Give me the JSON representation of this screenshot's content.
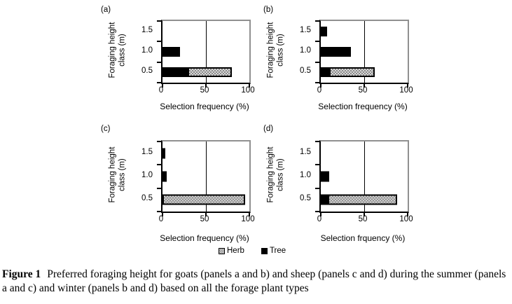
{
  "chart_data": [
    {
      "panel": "a",
      "title": "(a)",
      "type": "bar",
      "orientation": "horizontal",
      "stacked": true,
      "categories": [
        "1.5",
        "1.0",
        "0.5"
      ],
      "series": [
        {
          "name": "Tree",
          "fill": "solid-black",
          "values": [
            0,
            20,
            30
          ]
        },
        {
          "name": "Herb",
          "fill": "hatched",
          "values": [
            0,
            0,
            50
          ]
        }
      ],
      "xlabel": "Selection frequency (%)",
      "ylabel": "Foraging height class (m)",
      "ylabel_lines": [
        "Foraging height",
        "class (m)"
      ],
      "xlim": [
        0,
        100
      ],
      "xticks": [
        "0",
        "50",
        "100"
      ],
      "gridline_x": 50
    },
    {
      "panel": "b",
      "title": "(b)",
      "type": "bar",
      "orientation": "horizontal",
      "stacked": true,
      "categories": [
        "1.5",
        "1.0",
        "0.5"
      ],
      "series": [
        {
          "name": "Tree",
          "fill": "solid-black",
          "values": [
            7,
            35,
            10
          ]
        },
        {
          "name": "Herb",
          "fill": "hatched",
          "values": [
            0,
            0,
            52
          ]
        }
      ],
      "xlabel": "Selection frequency (%)",
      "ylabel": "Foraging height class (m)",
      "ylabel_lines": [
        "Foraging height",
        "class (m)"
      ],
      "xlim": [
        0,
        100
      ],
      "xticks": [
        "0",
        "50",
        "100"
      ],
      "gridline_x": 50
    },
    {
      "panel": "c",
      "title": "(c)",
      "type": "bar",
      "orientation": "horizontal",
      "stacked": true,
      "categories": [
        "1.5",
        "1.0",
        "0.5"
      ],
      "series": [
        {
          "name": "Tree",
          "fill": "solid-black",
          "values": [
            3,
            5,
            0
          ]
        },
        {
          "name": "Herb",
          "fill": "hatched",
          "values": [
            0,
            0,
            95
          ]
        }
      ],
      "xlabel": "Selection frequency (%)",
      "ylabel": "Foraging height class (m)",
      "ylabel_lines": [
        "Foraging height",
        "class (m)"
      ],
      "xlim": [
        0,
        100
      ],
      "xticks": [
        "0",
        "50",
        "100"
      ],
      "gridline_x": 50
    },
    {
      "panel": "d",
      "title": "(d)",
      "type": "bar",
      "orientation": "horizontal",
      "stacked": true,
      "categories": [
        "1.5",
        "1.0",
        "0.5"
      ],
      "series": [
        {
          "name": "Tree",
          "fill": "solid-black",
          "values": [
            0,
            10,
            8
          ]
        },
        {
          "name": "Herb",
          "fill": "hatched",
          "values": [
            0,
            0,
            80
          ]
        }
      ],
      "xlabel": "Selection frquency (%)",
      "ylabel": "Foraging height class (m)",
      "ylabel_lines": [
        "Foraging height",
        "class (m)"
      ],
      "xlim": [
        0,
        100
      ],
      "xticks": [
        "0",
        "50",
        "100"
      ],
      "gridline_x": 50
    }
  ],
  "legend": {
    "items": [
      {
        "label": "Herb",
        "fill": "hatched"
      },
      {
        "label": "Tree",
        "fill": "solid-black"
      }
    ]
  },
  "caption": {
    "label": "Figure 1",
    "text": "Preferred foraging height for goats (panels a and b) and sheep (panels c and d) during the summer (panels a and c) and winter (panels b and d) based on all the forage plant types"
  },
  "colors": {
    "bar_tree": "#000000",
    "hatch_dark": "#8a8a8a",
    "hatch_light": "#d8d8d8",
    "frame_gray": "#909090",
    "text": "#000000",
    "background": "#ffffff"
  }
}
